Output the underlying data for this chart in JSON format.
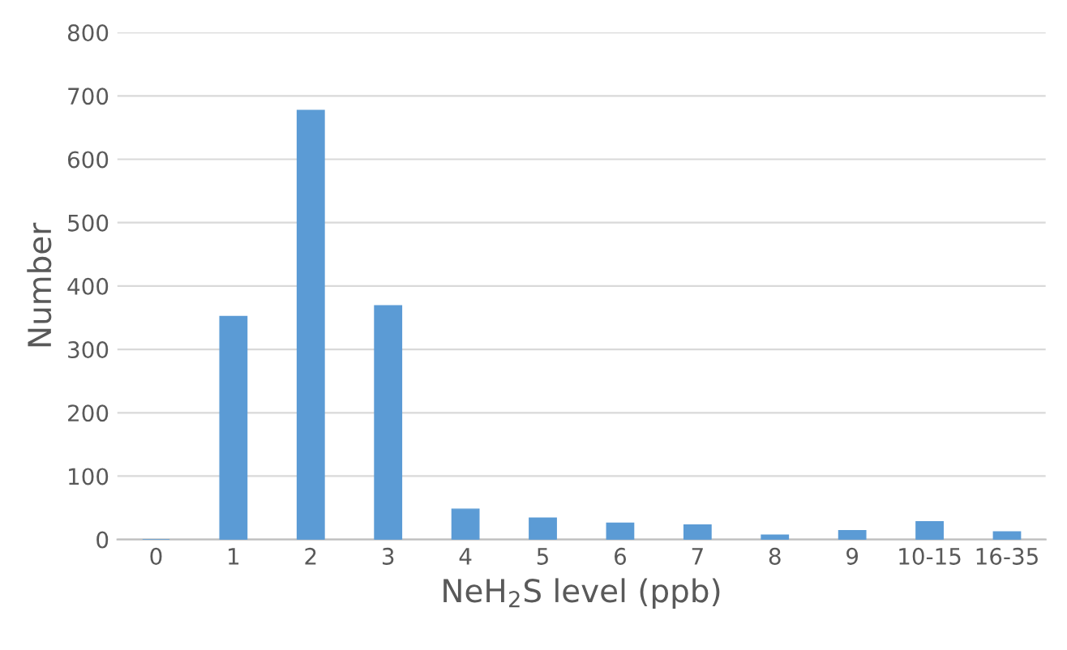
{
  "chart_data": {
    "type": "bar",
    "xlabel": "NeH$_{2}$S level (ppb)",
    "ylabel": "Number",
    "categories": [
      "0",
      "1",
      "2",
      "3",
      "4",
      "5",
      "6",
      "7",
      "8",
      "9",
      "10-15",
      "16-35"
    ],
    "series": [
      {
        "color": "#5b9bd5",
        "values": [
          0,
          352,
          677,
          369,
          48,
          34,
          26,
          23,
          7,
          14,
          28,
          12
        ]
      }
    ],
    "ylim": [
      0,
      800
    ],
    "yticks": [
      0,
      100,
      200,
      300,
      400,
      500,
      600,
      700,
      800
    ],
    "grid": "y",
    "legend": false
  }
}
